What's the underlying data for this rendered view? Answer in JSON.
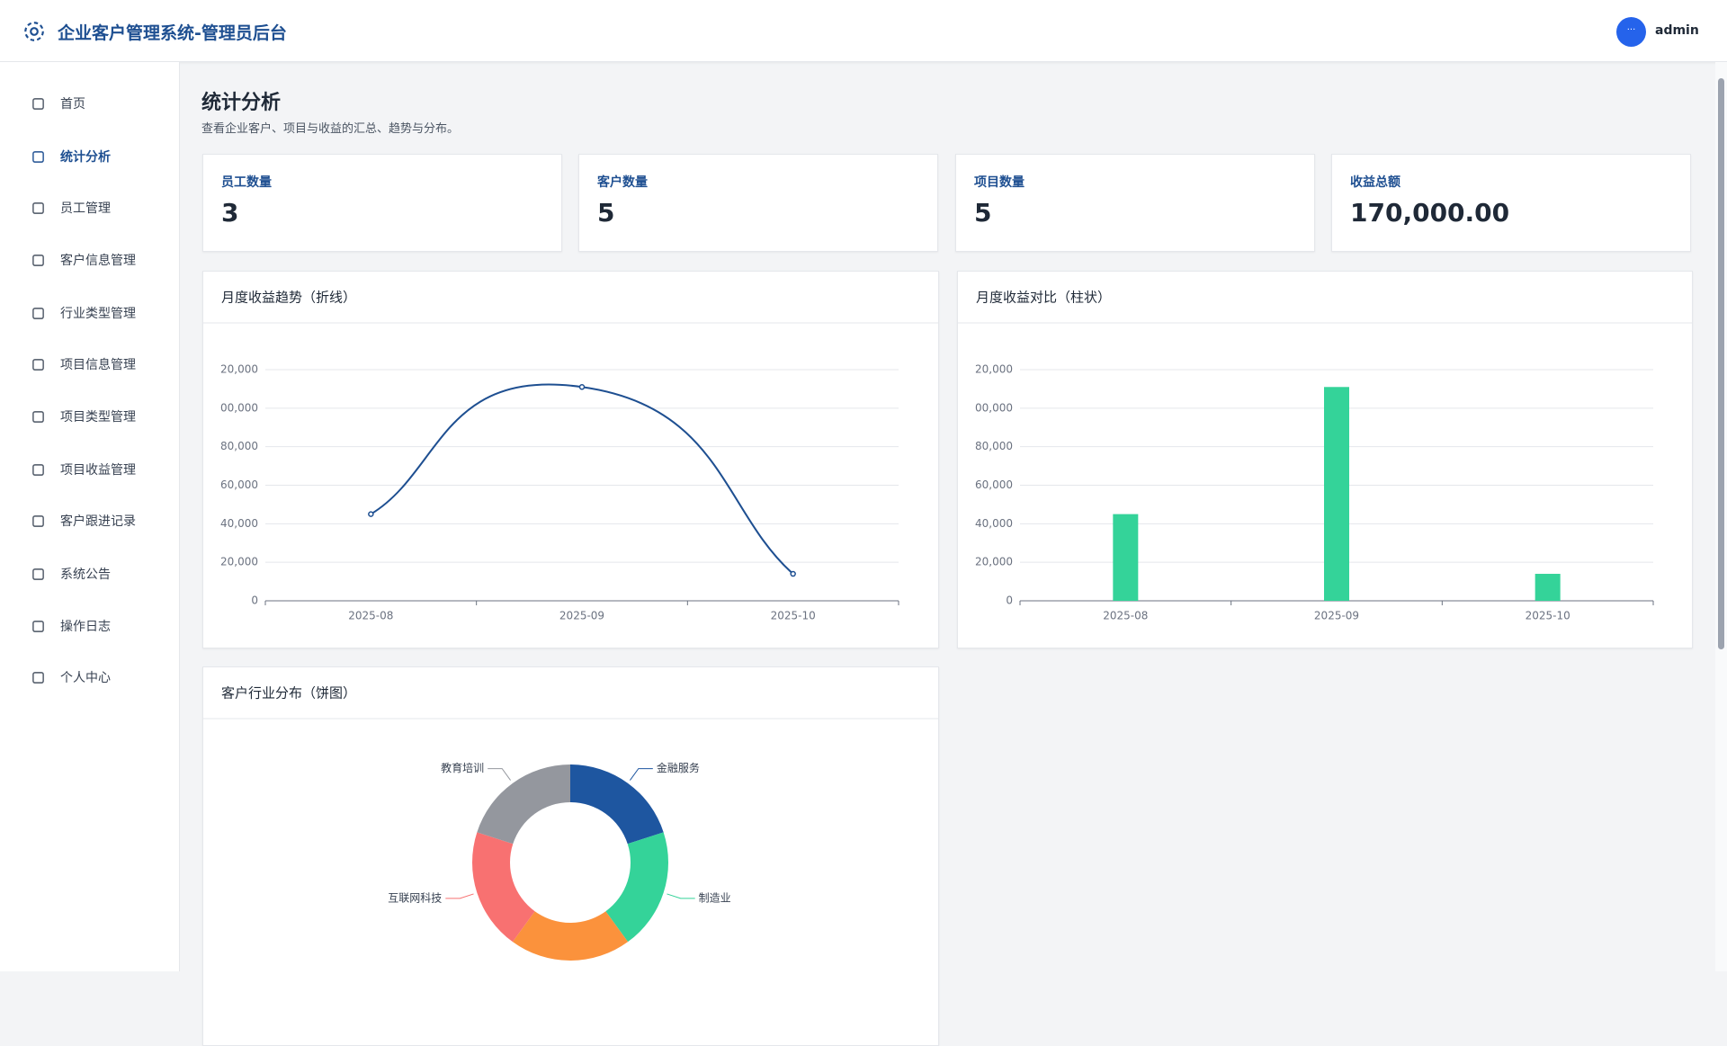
{
  "header": {
    "title": "企业客户管理系统-管理员后台",
    "user": "admin"
  },
  "menu": [
    "首页",
    "统计分析",
    "员工管理",
    "客户信息管理",
    "行业类型管理",
    "项目信息管理",
    "项目类型管理",
    "项目收益管理",
    "客户跟进记录",
    "系统公告",
    "操作日志",
    "个人中心"
  ],
  "page": {
    "title": "统计分析",
    "subtitle": "查看企业客户、项目与收益的汇总、趋势与分布。"
  },
  "stats": [
    {
      "label": "员工数量",
      "value": "3"
    },
    {
      "label": "客户数量",
      "value": "5"
    },
    {
      "label": "项目数量",
      "value": "5"
    },
    {
      "label": "收益总额",
      "value": "170,000.00"
    }
  ],
  "charts": [
    {
      "type": "line",
      "title": "月度收益趋势（折线）",
      "categories": [
        "2025-08",
        "2025-09",
        "2025-10"
      ],
      "values": [
        45000,
        111000,
        14000
      ],
      "color": "#1e4f91",
      "ylim": [
        0,
        120000
      ],
      "yticks": [
        0,
        {
          "value": 20000,
          "label": "20,000"
        },
        {
          "value": 40000,
          "label": "40,000"
        },
        {
          "value": 60000,
          "label": "60,000"
        },
        {
          "value": 80000,
          "label": "80,000"
        },
        {
          "value": 100000,
          "label": "00,000"
        },
        {
          "value": 120000,
          "label": "20,000"
        }
      ],
      "grid": true
    },
    {
      "type": "bar",
      "title": "月度收益对比（柱状）",
      "categories": [
        "2025-08",
        "2025-09",
        "2025-10"
      ],
      "values": [
        45000,
        111000,
        14000
      ],
      "color": "#34d399",
      "ylim": [
        0,
        120000
      ],
      "yticks": [
        0,
        {
          "value": 20000,
          "label": "20,000"
        },
        {
          "value": 40000,
          "label": "40,000"
        },
        {
          "value": 60000,
          "label": "60,000"
        },
        {
          "value": 80000,
          "label": "80,000"
        },
        {
          "value": 100000,
          "label": "00,000"
        },
        {
          "value": 120000,
          "label": "20,000"
        }
      ],
      "grid": true
    },
    {
      "type": "pie",
      "title": "客户行业分布（饼图）",
      "categories": [
        "金融服务",
        "制造业",
        null,
        "互联网科技",
        "教育培训"
      ],
      "values": [
        1,
        1,
        1,
        1,
        1
      ],
      "colors": [
        "#1e56a0",
        "#34d399",
        "#fb923c",
        "#f87171",
        "#94979e"
      ]
    }
  ]
}
